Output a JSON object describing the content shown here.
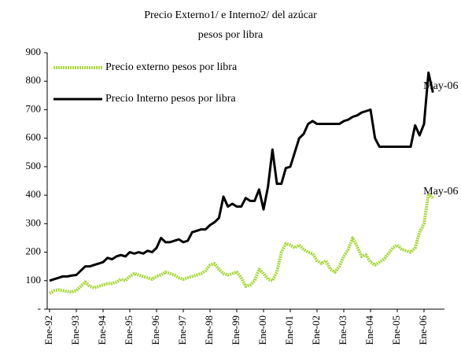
{
  "chart_data": {
    "type": "line",
    "title": "Precio Externo1/ e Interno2/ del azúcar",
    "subtitle": "pesos por libra",
    "categories": [
      "Ene-92",
      null,
      null,
      null,
      null,
      null,
      "Ene-93",
      null,
      null,
      null,
      null,
      null,
      "Ene-94",
      null,
      null,
      null,
      null,
      null,
      "Ene-95",
      null,
      null,
      null,
      null,
      null,
      "Ene-96",
      null,
      null,
      null,
      null,
      null,
      "Ene-97",
      null,
      null,
      null,
      null,
      null,
      "Ene-98",
      null,
      null,
      null,
      null,
      null,
      "Ene-99",
      null,
      null,
      null,
      null,
      null,
      "Ene-00",
      null,
      null,
      null,
      null,
      null,
      "Ene-01",
      null,
      null,
      null,
      null,
      null,
      "Ene-02",
      null,
      null,
      null,
      null,
      null,
      "Ene-03",
      null,
      null,
      null,
      null,
      null,
      "Ene-04",
      null,
      null,
      null,
      null,
      null,
      "Ene-05",
      null,
      null,
      null,
      null,
      null,
      "Ene-06",
      null,
      null
    ],
    "series": [
      {
        "name": "Precio externo pesos por libra",
        "color": "#a8d83c",
        "dashed": true,
        "end_label": "May-06",
        "values": [
          55,
          65,
          68,
          65,
          62,
          60,
          65,
          80,
          95,
          80,
          75,
          80,
          85,
          90,
          90,
          95,
          105,
          100,
          115,
          125,
          120,
          115,
          110,
          105,
          115,
          120,
          130,
          125,
          120,
          110,
          105,
          110,
          115,
          120,
          125,
          135,
          155,
          160,
          140,
          125,
          120,
          125,
          130,
          110,
          80,
          85,
          100,
          140,
          125,
          105,
          100,
          130,
          200,
          230,
          225,
          215,
          225,
          210,
          200,
          195,
          170,
          160,
          170,
          140,
          130,
          150,
          185,
          210,
          250,
          220,
          185,
          190,
          165,
          155,
          165,
          175,
          195,
          215,
          225,
          210,
          205,
          200,
          215,
          270,
          300,
          405,
          390
        ]
      },
      {
        "name": "Precio Interno pesos por libra",
        "color": "#000000",
        "dashed": false,
        "end_label": "May-06",
        "values": [
          100,
          105,
          110,
          115,
          115,
          118,
          120,
          135,
          150,
          150,
          155,
          160,
          165,
          180,
          175,
          185,
          190,
          185,
          200,
          195,
          200,
          195,
          205,
          200,
          215,
          250,
          235,
          235,
          240,
          245,
          235,
          240,
          270,
          275,
          280,
          280,
          295,
          305,
          320,
          395,
          360,
          370,
          360,
          360,
          390,
          380,
          380,
          420,
          350,
          430,
          560,
          440,
          440,
          495,
          500,
          550,
          600,
          615,
          650,
          660,
          650,
          650,
          650,
          650,
          650,
          650,
          660,
          665,
          675,
          680,
          690,
          695,
          700,
          600,
          570,
          570,
          570,
          570,
          570,
          570,
          570,
          570,
          645,
          610,
          650,
          830,
          760
        ]
      }
    ],
    "ylim": [
      0,
      900
    ],
    "yticks": [
      {
        "value": 0,
        "label": "-"
      },
      100,
      200,
      300,
      400,
      500,
      600,
      700,
      800,
      900
    ],
    "legend": "top-left"
  }
}
